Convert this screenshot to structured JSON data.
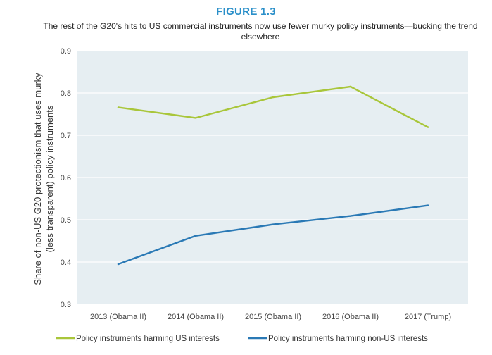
{
  "figure_label": "FIGURE 1.3",
  "chart_data": {
    "type": "line",
    "title": "The rest of the G20's hits to US commercial instruments now use fewer murky policy instruments—bucking the trend elsewhere",
    "xlabel": "",
    "ylabel_lines": [
      "Share of non-US G20 protectionism that uses murky",
      "(less transparent) policy instruments"
    ],
    "categories": [
      "2013 (Obama II)",
      "2014 (Obama II)",
      "2015 (Obama II)",
      "2016 (Obama II)",
      "2017 (Trump)"
    ],
    "ylim": [
      0.3,
      0.9
    ],
    "yticks": [
      "0.3",
      "0.4",
      "0.5",
      "0.6",
      "0.7",
      "0.8",
      "0.9"
    ],
    "grid": true,
    "legend_position": "bottom",
    "series": [
      {
        "name": "Policy  instruments harming US interests",
        "color": "#a9c63a",
        "values": [
          0.766,
          0.741,
          0.79,
          0.815,
          0.719
        ]
      },
      {
        "name": "Policy  instruments harming non-US interests",
        "color": "#2a79b5",
        "values": [
          0.395,
          0.462,
          0.489,
          0.509,
          0.534
        ]
      }
    ],
    "plot_background": "#e6eef2"
  }
}
